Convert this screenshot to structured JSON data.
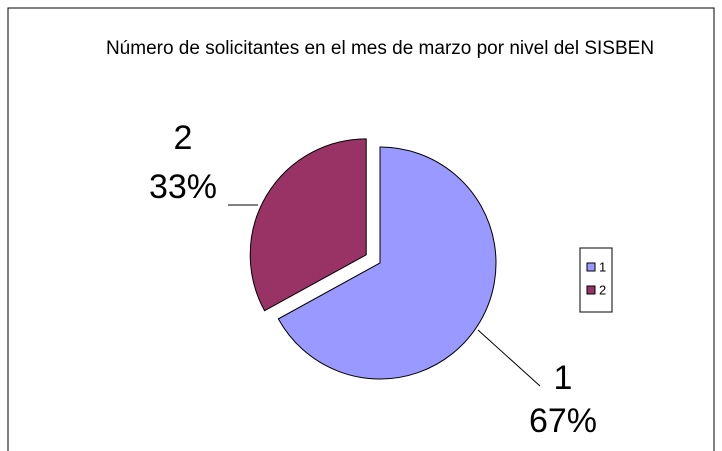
{
  "chart_data": {
    "type": "pie",
    "title": "Número de solicitantes en el mes de marzo por nivel del SISBEN",
    "categories": [
      "1",
      "2"
    ],
    "values": [
      67,
      33
    ],
    "value_labels": [
      "67%",
      "33%"
    ],
    "colors": [
      "#9999ff",
      "#993366"
    ],
    "legend": "right"
  }
}
